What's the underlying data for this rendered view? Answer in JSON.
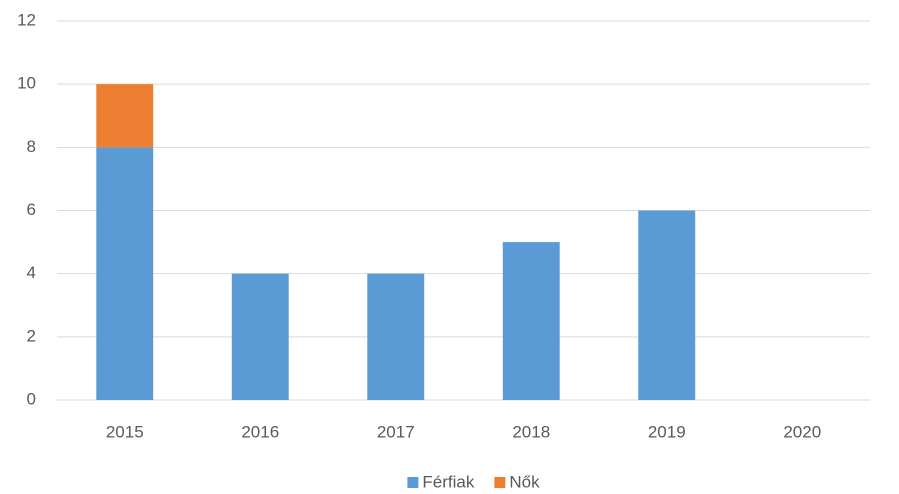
{
  "chart_data": {
    "type": "bar",
    "stacked": true,
    "categories": [
      "2015",
      "2016",
      "2017",
      "2018",
      "2019",
      "2020"
    ],
    "series": [
      {
        "name": "Férfiak",
        "color": "#5b9bd5",
        "values": [
          8,
          4,
          4,
          5,
          6,
          0
        ]
      },
      {
        "name": "Nők",
        "color": "#ed7d31",
        "values": [
          2,
          0,
          0,
          0,
          0,
          0
        ]
      }
    ],
    "ylim": [
      0,
      12
    ],
    "yticks": [
      0,
      2,
      4,
      6,
      8,
      10,
      12
    ],
    "grid": true,
    "legend": "bottom"
  }
}
